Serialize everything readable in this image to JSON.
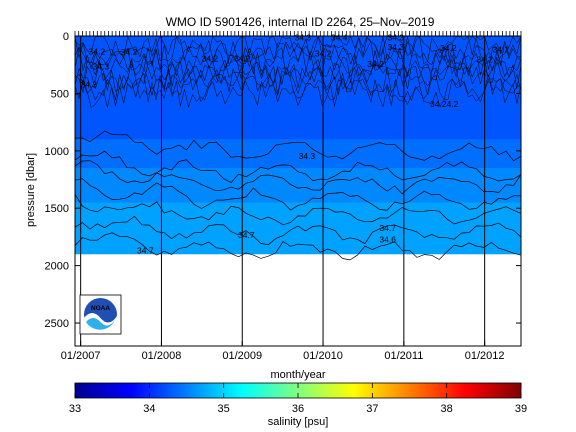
{
  "chart_data": [
    {
      "type": "heatmap",
      "title": "WMO ID 5901426, internal ID 2264, 25–Nov–2019",
      "xlabel": "month/year",
      "ylabel": "pressure [dbar]",
      "x_tick_labels": [
        "01/2007",
        "01/2008",
        "01/2009",
        "01/2010",
        "01/2011",
        "01/2012"
      ],
      "x_tick_years": [
        2007,
        2008,
        2009,
        2010,
        2011,
        2012
      ],
      "xlim_years": [
        2006.93,
        2012.45
      ],
      "y_ticks": [
        0,
        500,
        1000,
        1500,
        2000,
        2500
      ],
      "ylim": [
        0,
        2700
      ],
      "y_reversed": true,
      "data_depth_max": 1900,
      "color_scale": {
        "min": 33,
        "max": 39,
        "colormap": "jet"
      },
      "background_salinity": 34.4,
      "salinity_bands": [
        {
          "depth_top": 0,
          "depth_bottom": 900,
          "salinity": 34.25
        },
        {
          "depth_top": 900,
          "depth_bottom": 1150,
          "salinity": 34.4
        },
        {
          "depth_top": 1150,
          "depth_bottom": 1450,
          "salinity": 34.55
        },
        {
          "depth_top": 1450,
          "depth_bottom": 1900,
          "salinity": 34.7
        }
      ],
      "contour_labels": [
        {
          "text": "34.2",
          "year": 2007.2,
          "depth": 160
        },
        {
          "text": "34.3",
          "year": 2007.25,
          "depth": 290
        },
        {
          "text": "34.2",
          "year": 2007.6,
          "depth": 165
        },
        {
          "text": "34.3",
          "year": 2007.1,
          "depth": 450
        },
        {
          "text": "34.2",
          "year": 2008.6,
          "depth": 220
        },
        {
          "text": "34.2",
          "year": 2009.0,
          "depth": 220
        },
        {
          "text": "34.3",
          "year": 2009.75,
          "depth": 40
        },
        {
          "text": "34.4",
          "year": 2010.2,
          "depth": 40
        },
        {
          "text": "34.3",
          "year": 2010.9,
          "depth": 40
        },
        {
          "text": "34.2",
          "year": 2010.0,
          "depth": 180
        },
        {
          "text": "34.2",
          "year": 2010.65,
          "depth": 270
        },
        {
          "text": "34.3",
          "year": 2010.9,
          "depth": 120
        },
        {
          "text": "34.2",
          "year": 2011.55,
          "depth": 130
        },
        {
          "text": "34.2",
          "year": 2012.2,
          "depth": 145
        },
        {
          "text": "34.2",
          "year": 2012.0,
          "depth": 230
        },
        {
          "text": "34.24.2",
          "year": 2011.5,
          "depth": 620
        },
        {
          "text": "34.3",
          "year": 2009.8,
          "depth": 1070
        },
        {
          "text": "34.7",
          "year": 2007.8,
          "depth": 1895
        },
        {
          "text": "34.7",
          "year": 2009.05,
          "depth": 1760
        },
        {
          "text": "34.7",
          "year": 2010.8,
          "depth": 1700
        },
        {
          "text": "34.6",
          "year": 2010.8,
          "depth": 1800
        }
      ],
      "colorbar": {
        "ticks": [
          33,
          34,
          35,
          36,
          37,
          38,
          39
        ],
        "label": "salinity [psu]"
      },
      "logo": {
        "text": "NOAA",
        "placement": "bottom-left"
      }
    }
  ]
}
